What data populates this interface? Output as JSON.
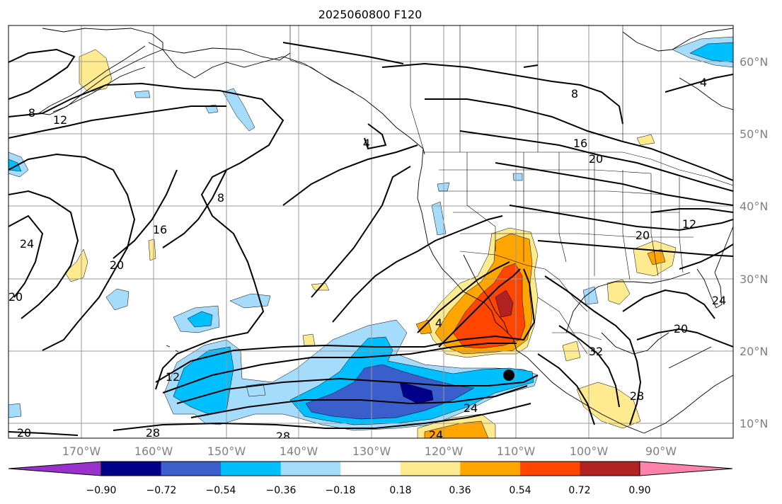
{
  "title": "2025060800 F120",
  "map": {
    "lat_labels": [
      "60°N",
      "50°N",
      "40°N",
      "30°N",
      "20°N",
      "10°N"
    ],
    "lon_labels": [
      "170°W",
      "160°W",
      "150°W",
      "140°W",
      "130°W",
      "120°W",
      "110°W",
      "100°W",
      "90°W"
    ],
    "contour_labels": [
      "8",
      "12",
      "16",
      "20",
      "24",
      "28",
      "32",
      "4"
    ],
    "colors": {
      "lt_blue": "#a6dcfb",
      "cyan": "#00bfff",
      "mid_blue": "#3a5fcd",
      "navy": "#00008b",
      "yellow": "#ffeb8f",
      "orange": "#ffa500",
      "red_orange": "#ff4500",
      "dark_red": "#b22222",
      "pink": "#ff82ab",
      "purple": "#9932cc"
    }
  },
  "colorbar": {
    "tick_labels": [
      "−0.90",
      "−0.72",
      "−0.54",
      "−0.36",
      "−0.18",
      "0.18",
      "0.36",
      "0.54",
      "0.72",
      "0.90"
    ],
    "segment_colors": [
      "#00008b",
      "#3a5fcd",
      "#00bfff",
      "#a6dcfb",
      "#ffffff",
      "#ffeb8f",
      "#ffa500",
      "#ff4500",
      "#b22222"
    ],
    "under_color": "#9932cc",
    "over_color": "#ff82ab"
  }
}
